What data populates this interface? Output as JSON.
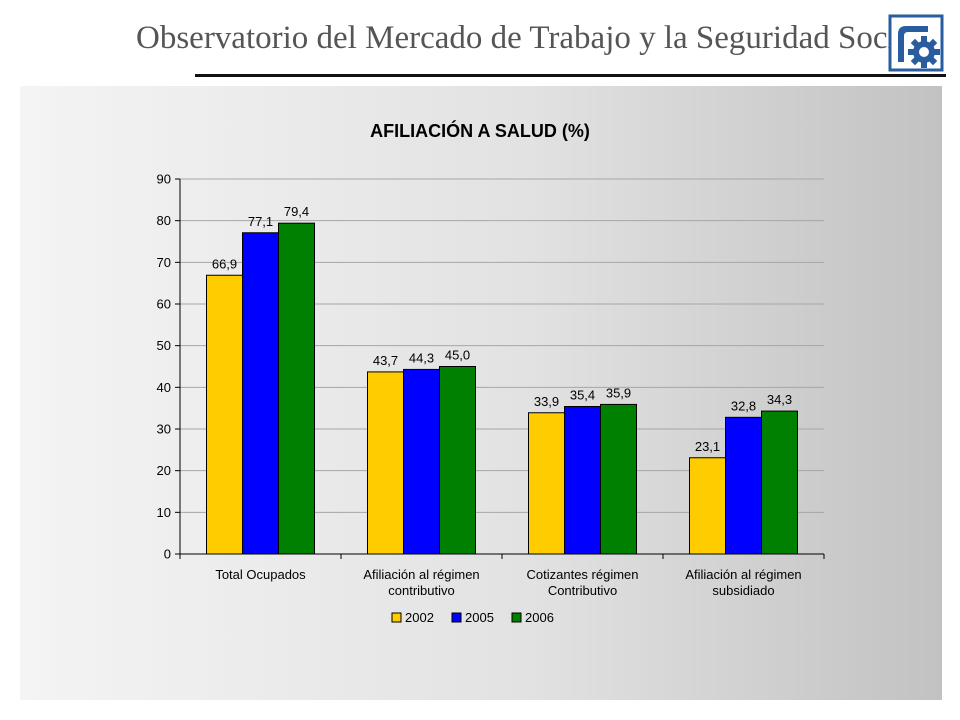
{
  "header": {
    "title": "Observatorio del Mercado de Trabajo y la Seguridad Social"
  },
  "chart_data": {
    "type": "bar",
    "title": "AFILIACIÓN A SALUD (%)",
    "categories": [
      [
        "Total Ocupados"
      ],
      [
        "Afiliación al régimen",
        "contributivo"
      ],
      [
        "Cotizantes régimen",
        "Contributivo"
      ],
      [
        "Afiliación al régimen",
        "subsidiado"
      ]
    ],
    "series": [
      {
        "name": "2002",
        "color": "#ffcc00",
        "values": [
          66.9,
          43.7,
          33.9,
          23.1
        ],
        "labels": [
          "66,9",
          "43,7",
          "33,9",
          "23,1"
        ]
      },
      {
        "name": "2005",
        "color": "#0000ff",
        "values": [
          77.1,
          44.3,
          35.4,
          32.8
        ],
        "labels": [
          "77,1",
          "44,3",
          "35,4",
          "32,8"
        ]
      },
      {
        "name": "2006",
        "color": "#008000",
        "values": [
          79.4,
          45.0,
          35.9,
          34.3
        ],
        "labels": [
          "79,4",
          "45,0",
          "35,9",
          "34,3"
        ]
      }
    ],
    "ylim": [
      0,
      90
    ],
    "yticks": [
      0,
      10,
      20,
      30,
      40,
      50,
      60,
      70,
      80,
      90
    ],
    "grid": true,
    "legend": "bottom"
  }
}
